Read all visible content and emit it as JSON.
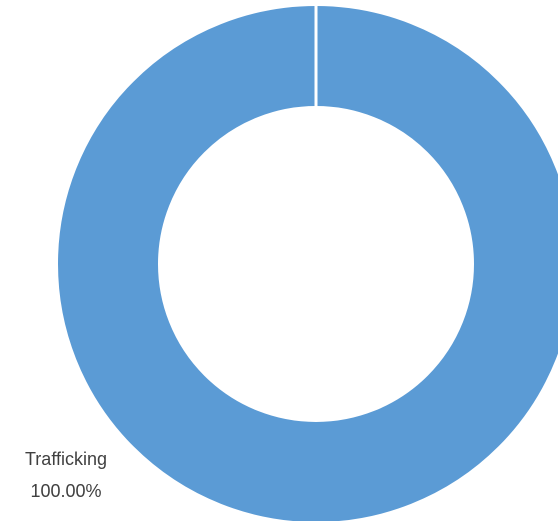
{
  "chart_data": {
    "type": "pie",
    "variant": "donut",
    "categories": [
      "Trafficking"
    ],
    "values": [
      100.0
    ],
    "data_labels": [
      {
        "category": "Trafficking",
        "percent": "100.00%"
      }
    ],
    "colors": [
      "#5B9BD5"
    ],
    "separator_color": "#ffffff",
    "title": "",
    "legend": "none"
  }
}
